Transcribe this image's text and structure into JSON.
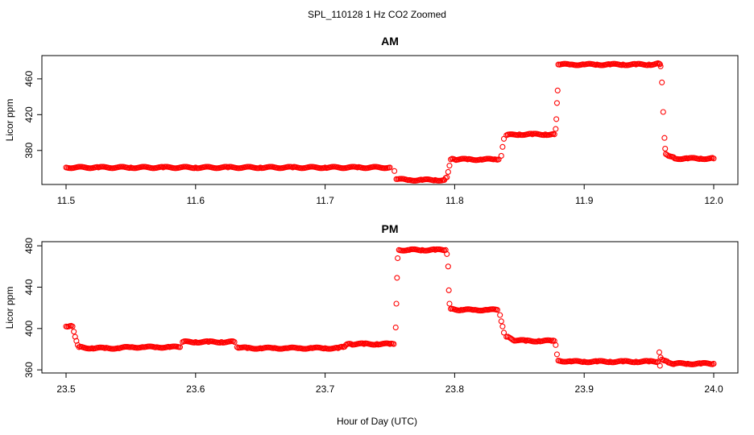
{
  "figure": {
    "title": "SPL_110128  1 Hz CO2 Zoomed",
    "xlabel": "Hour of Day (UTC)"
  },
  "chart_data": [
    {
      "type": "scatter",
      "title": "AM",
      "xlabel": "Hour of Day (UTC)",
      "ylabel": "Licor ppm",
      "xlim": [
        11.5,
        12.0
      ],
      "ylim": [
        342,
        486
      ],
      "x_ticks": [
        11.5,
        11.6,
        11.7,
        11.8,
        11.9,
        12.0
      ],
      "x_tick_labels": [
        "11.5",
        "11.6",
        "11.7",
        "11.8",
        "11.9",
        "12.0"
      ],
      "y_ticks": [
        380,
        420,
        460
      ],
      "y_tick_labels": [
        "380",
        "420",
        "460"
      ],
      "marker": "open-circle",
      "color": "#ff0000",
      "series": [
        {
          "points": [
            [
              11.5,
              361
            ],
            [
              11.525,
              361
            ],
            [
              11.55,
              361
            ],
            [
              11.575,
              361
            ],
            [
              11.6,
              361
            ],
            [
              11.625,
              361
            ],
            [
              11.65,
              361
            ],
            [
              11.675,
              361
            ],
            [
              11.7,
              361
            ],
            [
              11.725,
              361
            ],
            [
              11.75,
              361
            ],
            [
              11.7535,
              357
            ],
            [
              11.755,
              348
            ],
            [
              11.765,
              347
            ],
            [
              11.775,
              347
            ],
            [
              11.785,
              347
            ],
            [
              11.792,
              347
            ],
            [
              11.794,
              350
            ],
            [
              11.795,
              356
            ],
            [
              11.796,
              363
            ],
            [
              11.797,
              370
            ],
            [
              11.8,
              370
            ],
            [
              11.81,
              370
            ],
            [
              11.82,
              370
            ],
            [
              11.83,
              370
            ],
            [
              11.834,
              370
            ],
            [
              11.836,
              374
            ],
            [
              11.837,
              384
            ],
            [
              11.838,
              393
            ],
            [
              11.84,
              397
            ],
            [
              11.85,
              398
            ],
            [
              11.86,
              398
            ],
            [
              11.87,
              398
            ],
            [
              11.877,
              398
            ],
            [
              11.878,
              404
            ],
            [
              11.8785,
              415
            ],
            [
              11.879,
              433
            ],
            [
              11.8795,
              447
            ],
            [
              11.88,
              476
            ],
            [
              11.89,
              476
            ],
            [
              11.9,
              476
            ],
            [
              11.91,
              476
            ],
            [
              11.92,
              476
            ],
            [
              11.93,
              476
            ],
            [
              11.94,
              476
            ],
            [
              11.95,
              476
            ],
            [
              11.958,
              477
            ],
            [
              11.959,
              474
            ],
            [
              11.96,
              456
            ],
            [
              11.961,
              423
            ],
            [
              11.962,
              394
            ],
            [
              11.9625,
              382
            ],
            [
              11.963,
              376
            ],
            [
              11.965,
              374
            ],
            [
              11.97,
              371
            ],
            [
              11.98,
              371
            ],
            [
              11.99,
              371
            ],
            [
              12.0,
              371
            ]
          ]
        }
      ]
    },
    {
      "type": "scatter",
      "title": "PM",
      "xlabel": "Hour of Day (UTC)",
      "ylabel": "Licor ppm",
      "xlim": [
        23.5,
        24.0
      ],
      "ylim": [
        357,
        484
      ],
      "x_ticks": [
        23.5,
        23.6,
        23.7,
        23.8,
        23.9,
        24.0
      ],
      "x_tick_labels": [
        "23.5",
        "23.6",
        "23.7",
        "23.8",
        "23.9",
        "24.0"
      ],
      "y_ticks": [
        360,
        400,
        440,
        480
      ],
      "y_tick_labels": [
        "360",
        "400",
        "440",
        "480"
      ],
      "marker": "open-circle",
      "color": "#ff0000",
      "series": [
        {
          "points": [
            [
              23.5,
              402
            ],
            [
              23.502,
              402
            ],
            [
              23.505,
              402
            ],
            [
              23.506,
              397
            ],
            [
              23.507,
              392
            ],
            [
              23.508,
              388
            ],
            [
              23.509,
              384
            ],
            [
              23.51,
              382
            ],
            [
              23.52,
              381
            ],
            [
              23.53,
              381
            ],
            [
              23.54,
              381
            ],
            [
              23.55,
              382
            ],
            [
              23.56,
              382
            ],
            [
              23.57,
              382
            ],
            [
              23.58,
              382
            ],
            [
              23.588,
              382
            ],
            [
              23.59,
              387
            ],
            [
              23.6,
              387
            ],
            [
              23.61,
              387
            ],
            [
              23.62,
              387
            ],
            [
              23.63,
              387
            ],
            [
              23.632,
              382
            ],
            [
              23.64,
              381
            ],
            [
              23.65,
              381
            ],
            [
              23.66,
              381
            ],
            [
              23.67,
              381
            ],
            [
              23.68,
              381
            ],
            [
              23.69,
              381
            ],
            [
              23.7,
              381
            ],
            [
              23.71,
              381
            ],
            [
              23.714,
              382
            ],
            [
              23.716,
              384
            ],
            [
              23.72,
              385
            ],
            [
              23.73,
              385
            ],
            [
              23.74,
              385
            ],
            [
              23.75,
              385
            ],
            [
              23.753,
              385
            ],
            [
              23.7545,
              401
            ],
            [
              23.755,
              424
            ],
            [
              23.7555,
              449
            ],
            [
              23.756,
              468
            ],
            [
              23.757,
              476
            ],
            [
              23.765,
              476
            ],
            [
              23.775,
              476
            ],
            [
              23.785,
              476
            ],
            [
              23.793,
              476
            ],
            [
              23.794,
              472
            ],
            [
              23.795,
              460
            ],
            [
              23.7955,
              437
            ],
            [
              23.796,
              424
            ],
            [
              23.797,
              419
            ],
            [
              23.805,
              418
            ],
            [
              23.815,
              418
            ],
            [
              23.825,
              418
            ],
            [
              23.833,
              418
            ],
            [
              23.835,
              413
            ],
            [
              23.836,
              407
            ],
            [
              23.837,
              402
            ],
            [
              23.838,
              396
            ],
            [
              23.84,
              392
            ],
            [
              23.845,
              389
            ],
            [
              23.855,
              388
            ],
            [
              23.865,
              388
            ],
            [
              23.875,
              388
            ],
            [
              23.877,
              388
            ],
            [
              23.878,
              384
            ],
            [
              23.879,
              375
            ],
            [
              23.88,
              369
            ],
            [
              23.89,
              368
            ],
            [
              23.9,
              368
            ],
            [
              23.91,
              368
            ],
            [
              23.92,
              368
            ],
            [
              23.93,
              368
            ],
            [
              23.94,
              368
            ],
            [
              23.95,
              368
            ],
            [
              23.957,
              368
            ],
            [
              23.958,
              377
            ],
            [
              23.9585,
              364
            ],
            [
              23.959,
              372
            ],
            [
              23.96,
              370
            ],
            [
              23.965,
              367
            ],
            [
              23.97,
              366
            ],
            [
              23.98,
              366
            ],
            [
              23.99,
              366
            ],
            [
              24.0,
              366
            ]
          ]
        }
      ]
    }
  ]
}
